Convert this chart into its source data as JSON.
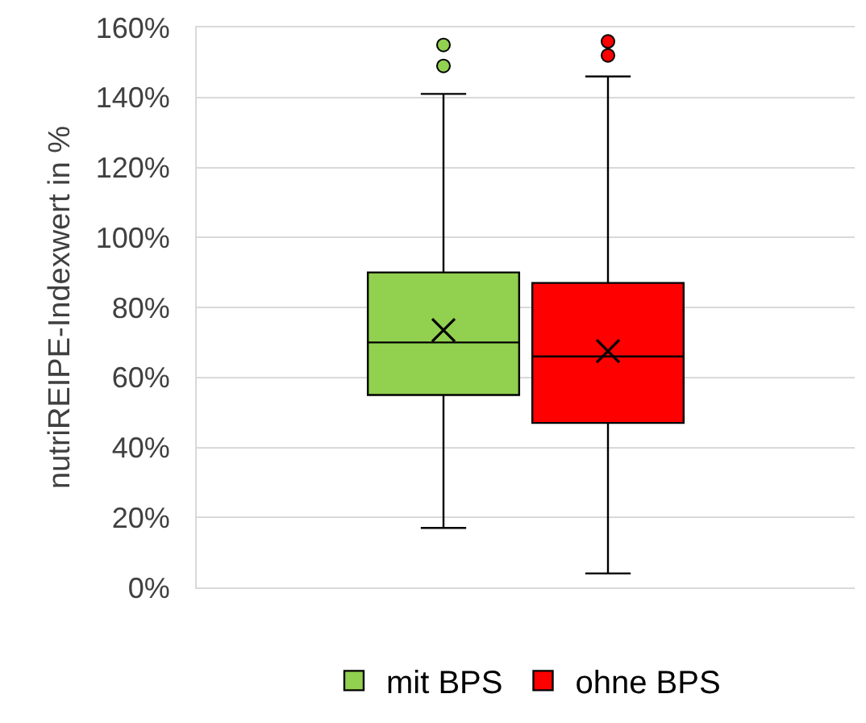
{
  "chart_data": {
    "type": "box",
    "categories": [
      null
    ],
    "ylabel": "nutriREIPE-Indexwert in %",
    "ylim": [
      0,
      160
    ],
    "yticks": [
      {
        "value": 0,
        "label": "0%"
      },
      {
        "value": 20,
        "label": "20%"
      },
      {
        "value": 40,
        "label": "40%"
      },
      {
        "value": 60,
        "label": "60%"
      },
      {
        "value": 80,
        "label": "80%"
      },
      {
        "value": 100,
        "label": "100%"
      },
      {
        "value": 120,
        "label": "120%"
      },
      {
        "value": 140,
        "label": "140%"
      },
      {
        "value": 160,
        "label": "160%"
      }
    ],
    "grid": "y",
    "legend": "bottom",
    "tick_labels": "y",
    "series": [
      {
        "name": "mit BPS",
        "color": "#92d050",
        "boxes": [
          {
            "low": 17,
            "q1": 55,
            "median": 70,
            "q3": 90,
            "high": 141,
            "mean": 73.5,
            "outliers": [
              149,
              155
            ]
          }
        ]
      },
      {
        "name": "ohne BPS",
        "color": "#ff0000",
        "boxes": [
          {
            "low": 4,
            "q1": 47,
            "median": 66,
            "q3": 87,
            "high": 146,
            "mean": 67.5,
            "outliers": [
              152,
              156
            ]
          }
        ]
      }
    ]
  }
}
